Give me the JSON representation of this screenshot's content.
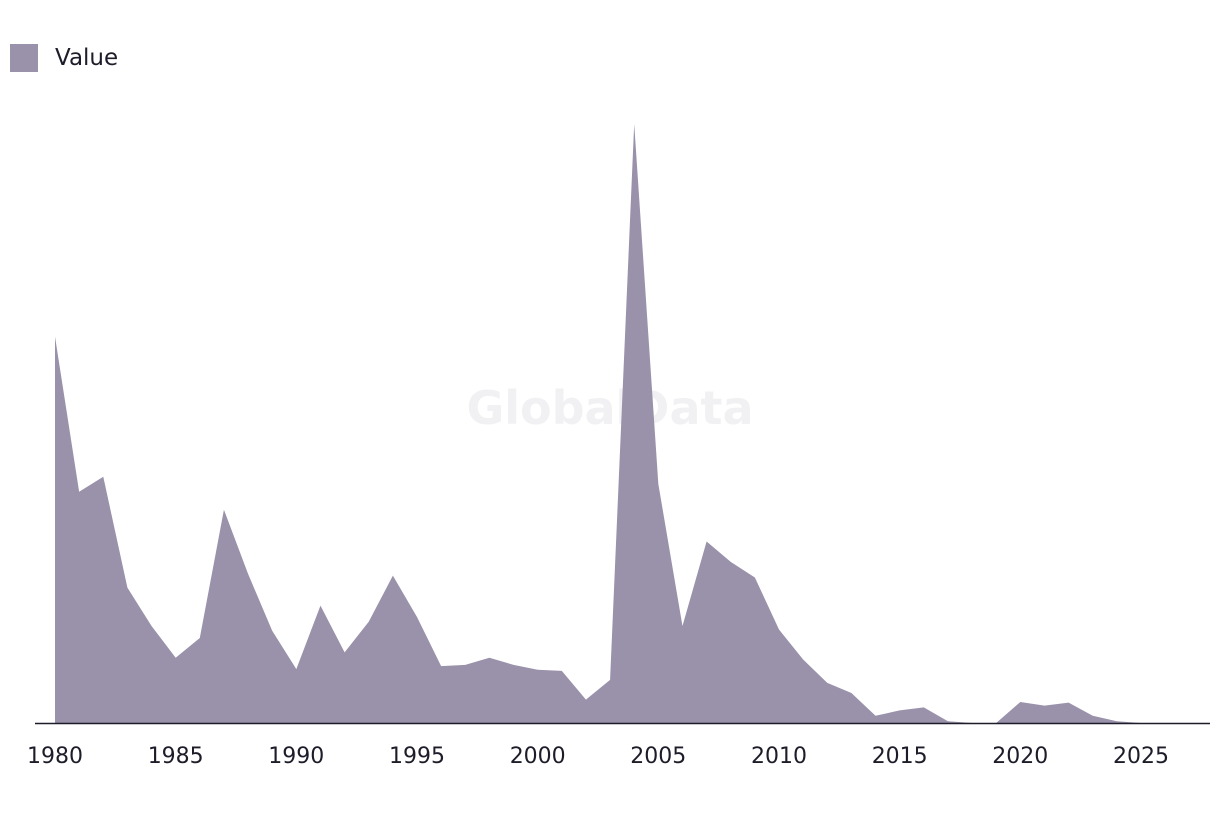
{
  "legend": {
    "label": "Value"
  },
  "watermark": "GlobalData",
  "colors": {
    "area": "#9a91aa",
    "axis": "#1d1d2a",
    "text": "#1d1d2a",
    "watermark": "#f1f1f3"
  },
  "chart_data": {
    "type": "area",
    "title": "",
    "xlabel": "",
    "ylabel": "",
    "grid": false,
    "legend_position": "top-left",
    "xlim": [
      1980,
      2027.2
    ],
    "ylim": [
      0,
      100
    ],
    "x_ticks": [
      1980,
      1985,
      1990,
      1995,
      2000,
      2005,
      2010,
      2015,
      2020,
      2025
    ],
    "series": [
      {
        "name": "Value",
        "x": [
          1980,
          1981,
          1982,
          1983,
          1984,
          1985,
          1986,
          1987,
          1988,
          1989,
          1990,
          1991,
          1992,
          1993,
          1994,
          1995,
          1996,
          1997,
          1998,
          1999,
          2000,
          2001,
          2002,
          2003,
          2004,
          2005,
          2006,
          2007,
          2008,
          2009,
          2010,
          2011,
          2012,
          2013,
          2014,
          2015,
          2016,
          2017,
          2018,
          2019,
          2020,
          2021,
          2022,
          2023,
          2024,
          2025,
          2026,
          2027
        ],
        "values": [
          64.5,
          38.6,
          41.1,
          22.6,
          16.2,
          10.9,
          14.2,
          35.6,
          24.9,
          15.4,
          9.0,
          19.6,
          11.8,
          16.9,
          24.6,
          17.7,
          9.5,
          9.7,
          10.9,
          9.7,
          8.9,
          8.7,
          3.9,
          7.2,
          100.0,
          39.9,
          16.2,
          30.3,
          26.9,
          24.3,
          15.6,
          10.6,
          6.7,
          5.0,
          1.2,
          2.1,
          2.6,
          0.3,
          0.0,
          0.0,
          3.5,
          2.9,
          3.4,
          1.2,
          0.3,
          0.0,
          0.0,
          0.0
        ]
      }
    ]
  }
}
